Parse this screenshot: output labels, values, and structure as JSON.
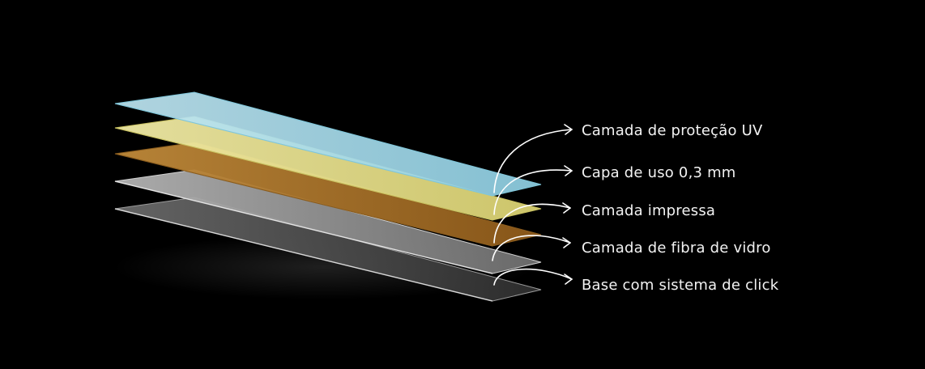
{
  "layers": [
    {
      "label": "Camada de proteção UV",
      "color": "#a8dcea",
      "edge": "#7fc6da"
    },
    {
      "label": "Capa de uso 0,3 mm",
      "color": "#e6e08a",
      "edge": "#c8c060"
    },
    {
      "label": "Camada impressa",
      "color": "#b07a2e",
      "edge": "#8a5c1e"
    },
    {
      "label": "Camada de fibra de vidro",
      "color": "#8e8e8e",
      "edge": "#d0d0d0"
    },
    {
      "label": "Base com sistema de click",
      "color": "#4a4a4a",
      "edge": "#9a9a9a"
    }
  ],
  "background": "#000000",
  "arrow_color": "#ffffff"
}
